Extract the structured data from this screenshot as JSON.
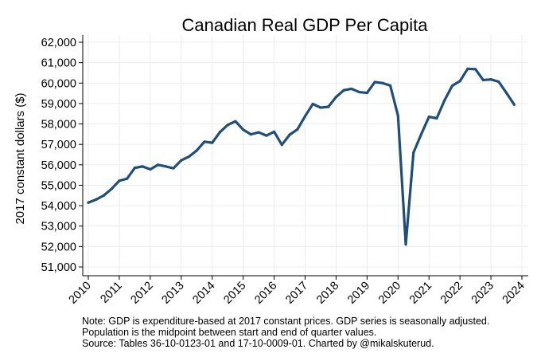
{
  "chart_data": {
    "type": "line",
    "title": "Canadian Real GDP Per Capita",
    "xlabel": "",
    "ylabel": "2017 constant dollars ($)",
    "xlim": [
      2010,
      2024
    ],
    "ylim": [
      51000,
      62000
    ],
    "x_ticks": [
      "2010",
      "2011",
      "2012",
      "2013",
      "2014",
      "2015",
      "2016",
      "2017",
      "2018",
      "2019",
      "2020",
      "2021",
      "2022",
      "2023",
      "2024"
    ],
    "y_ticks": [
      "51,000",
      "52,000",
      "53,000",
      "54,000",
      "55,000",
      "56,000",
      "57,000",
      "58,000",
      "59,000",
      "60,000",
      "61,000",
      "62,000"
    ],
    "grid": true,
    "line_color": "#1f4e79",
    "series": [
      {
        "x": [
          2010.0,
          2010.25,
          2010.5,
          2010.75,
          2011.0,
          2011.25,
          2011.5,
          2011.75,
          2012.0,
          2012.25,
          2012.5,
          2012.75,
          2013.0,
          2013.25,
          2013.5,
          2013.75,
          2014.0,
          2014.25,
          2014.5,
          2014.75,
          2015.0,
          2015.25,
          2015.5,
          2015.75,
          2016.0,
          2016.25,
          2016.5,
          2016.75,
          2017.0,
          2017.25,
          2017.5,
          2017.75,
          2018.0,
          2018.25,
          2018.5,
          2018.75,
          2019.0,
          2019.25,
          2019.5,
          2019.75,
          2020.0,
          2020.25,
          2020.5,
          2020.75,
          2021.0,
          2021.25,
          2021.5,
          2021.75,
          2022.0,
          2022.25,
          2022.5,
          2022.75,
          2023.0,
          2023.25,
          2023.5,
          2023.75
        ],
        "values": [
          54150,
          54300,
          54500,
          54820,
          55220,
          55320,
          55850,
          55920,
          55780,
          56000,
          55920,
          55830,
          56220,
          56400,
          56700,
          57130,
          57080,
          57600,
          57950,
          58130,
          57720,
          57490,
          57590,
          57430,
          57620,
          56980,
          57470,
          57730,
          58380,
          58980,
          58800,
          58840,
          59320,
          59650,
          59720,
          59560,
          59520,
          60050,
          60000,
          59880,
          58400,
          52100,
          56600,
          57500,
          58350,
          58280,
          59150,
          59870,
          60100,
          60700,
          60680,
          60150,
          60180,
          60070,
          59520,
          58950
        ]
      }
    ]
  },
  "note_lines": [
    "Note: GDP is expenditure-based at 2017 constant prices. GDP series is seasonally adjusted.",
    "Population is the midpoint between start and end of quarter values.",
    "Source: Tables 36-10-0123-01 and 17-10-0009-01. Charted by @mikalskuterud."
  ]
}
